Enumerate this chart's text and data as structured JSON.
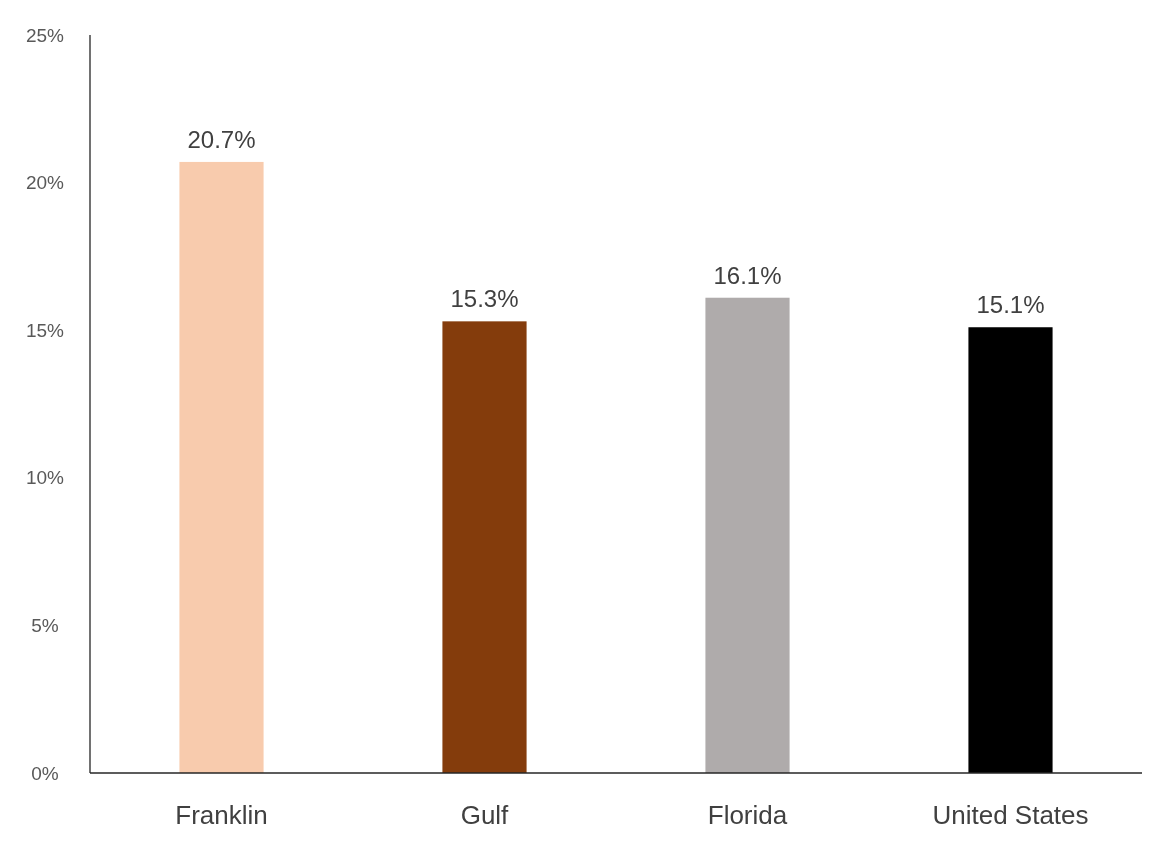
{
  "chart_data": {
    "type": "bar",
    "categories": [
      "Franklin",
      "Gulf",
      "Florida",
      "United States"
    ],
    "values": [
      20.7,
      15.3,
      16.1,
      15.1
    ],
    "colors": [
      "#f8cbad",
      "#843c0c",
      "#afabab",
      "#000000"
    ],
    "value_labels": [
      "20.7%",
      "15.3%",
      "16.1%",
      "15.1%"
    ],
    "ylim": [
      0,
      25
    ],
    "yticks": [
      {
        "value": 0,
        "label": "0%"
      },
      {
        "value": 5,
        "label": "5%"
      },
      {
        "value": 10,
        "label": "10%"
      },
      {
        "value": 15,
        "label": "15%"
      },
      {
        "value": 20,
        "label": "20%"
      },
      {
        "value": 25,
        "label": "25%"
      }
    ],
    "grid": false
  }
}
